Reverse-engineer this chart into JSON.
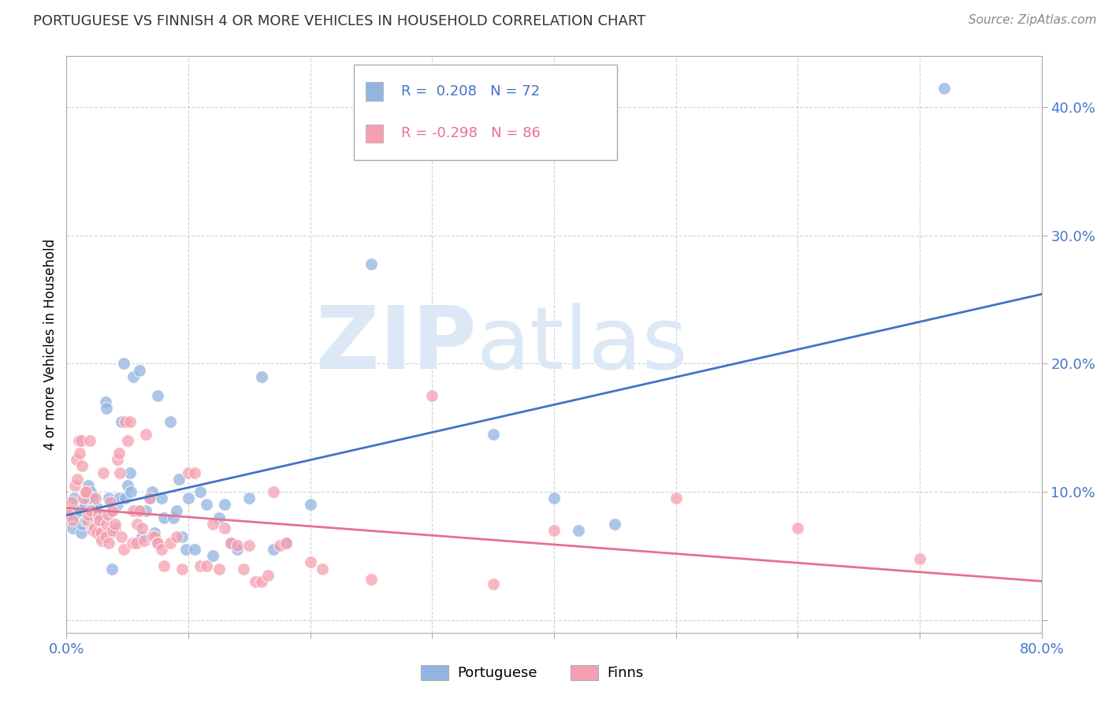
{
  "title": "PORTUGUESE VS FINNISH 4 OR MORE VEHICLES IN HOUSEHOLD CORRELATION CHART",
  "source": "Source: ZipAtlas.com",
  "ylabel": "4 or more Vehicles in Household",
  "legend_blue_r": "0.208",
  "legend_blue_n": "72",
  "legend_pink_r": "-0.298",
  "legend_pink_n": "86",
  "blue_color": "#92b4e0",
  "pink_color": "#f5a0b0",
  "blue_line_color": "#4472c4",
  "pink_line_color": "#e87090",
  "watermark_zip": "ZIP",
  "watermark_atlas": "atlas",
  "watermark_color": "#dce8f5",
  "xlim": [
    0.0,
    0.8
  ],
  "ylim": [
    -0.01,
    0.44
  ],
  "xtick_values": [
    0.0,
    0.1,
    0.2,
    0.3,
    0.4,
    0.5,
    0.6,
    0.7,
    0.8
  ],
  "ytick_values": [
    0.0,
    0.1,
    0.2,
    0.3,
    0.4
  ],
  "blue_scatter": [
    [
      0.003,
      0.082
    ],
    [
      0.005,
      0.072
    ],
    [
      0.006,
      0.095
    ],
    [
      0.008,
      0.082
    ],
    [
      0.01,
      0.085
    ],
    [
      0.012,
      0.068
    ],
    [
      0.013,
      0.075
    ],
    [
      0.015,
      0.09
    ],
    [
      0.016,
      0.078
    ],
    [
      0.017,
      0.095
    ],
    [
      0.018,
      0.105
    ],
    [
      0.019,
      0.08
    ],
    [
      0.02,
      0.1
    ],
    [
      0.021,
      0.095
    ],
    [
      0.022,
      0.072
    ],
    [
      0.023,
      0.085
    ],
    [
      0.025,
      0.088
    ],
    [
      0.027,
      0.078
    ],
    [
      0.028,
      0.065
    ],
    [
      0.03,
      0.082
    ],
    [
      0.032,
      0.17
    ],
    [
      0.033,
      0.165
    ],
    [
      0.035,
      0.095
    ],
    [
      0.036,
      0.068
    ],
    [
      0.037,
      0.04
    ],
    [
      0.038,
      0.085
    ],
    [
      0.04,
      0.072
    ],
    [
      0.042,
      0.09
    ],
    [
      0.043,
      0.095
    ],
    [
      0.045,
      0.155
    ],
    [
      0.047,
      0.2
    ],
    [
      0.048,
      0.095
    ],
    [
      0.05,
      0.105
    ],
    [
      0.052,
      0.115
    ],
    [
      0.053,
      0.1
    ],
    [
      0.055,
      0.19
    ],
    [
      0.058,
      0.085
    ],
    [
      0.06,
      0.195
    ],
    [
      0.062,
      0.065
    ],
    [
      0.065,
      0.085
    ],
    [
      0.068,
      0.095
    ],
    [
      0.07,
      0.1
    ],
    [
      0.072,
      0.068
    ],
    [
      0.075,
      0.175
    ],
    [
      0.078,
      0.095
    ],
    [
      0.08,
      0.08
    ],
    [
      0.085,
      0.155
    ],
    [
      0.088,
      0.08
    ],
    [
      0.09,
      0.085
    ],
    [
      0.092,
      0.11
    ],
    [
      0.095,
      0.065
    ],
    [
      0.098,
      0.055
    ],
    [
      0.1,
      0.095
    ],
    [
      0.105,
      0.055
    ],
    [
      0.11,
      0.1
    ],
    [
      0.115,
      0.09
    ],
    [
      0.12,
      0.05
    ],
    [
      0.125,
      0.08
    ],
    [
      0.13,
      0.09
    ],
    [
      0.135,
      0.06
    ],
    [
      0.14,
      0.055
    ],
    [
      0.15,
      0.095
    ],
    [
      0.16,
      0.19
    ],
    [
      0.17,
      0.055
    ],
    [
      0.18,
      0.06
    ],
    [
      0.2,
      0.09
    ],
    [
      0.25,
      0.278
    ],
    [
      0.35,
      0.145
    ],
    [
      0.4,
      0.095
    ],
    [
      0.42,
      0.07
    ],
    [
      0.45,
      0.075
    ],
    [
      0.72,
      0.415
    ]
  ],
  "pink_scatter": [
    [
      0.002,
      0.082
    ],
    [
      0.004,
      0.092
    ],
    [
      0.005,
      0.078
    ],
    [
      0.007,
      0.105
    ],
    [
      0.008,
      0.125
    ],
    [
      0.009,
      0.11
    ],
    [
      0.01,
      0.14
    ],
    [
      0.011,
      0.13
    ],
    [
      0.012,
      0.14
    ],
    [
      0.013,
      0.12
    ],
    [
      0.014,
      0.095
    ],
    [
      0.015,
      0.1
    ],
    [
      0.016,
      0.1
    ],
    [
      0.017,
      0.078
    ],
    [
      0.018,
      0.082
    ],
    [
      0.019,
      0.14
    ],
    [
      0.02,
      0.085
    ],
    [
      0.021,
      0.072
    ],
    [
      0.022,
      0.07
    ],
    [
      0.023,
      0.072
    ],
    [
      0.024,
      0.095
    ],
    [
      0.025,
      0.068
    ],
    [
      0.026,
      0.082
    ],
    [
      0.027,
      0.078
    ],
    [
      0.028,
      0.068
    ],
    [
      0.029,
      0.062
    ],
    [
      0.03,
      0.115
    ],
    [
      0.032,
      0.065
    ],
    [
      0.033,
      0.075
    ],
    [
      0.034,
      0.082
    ],
    [
      0.035,
      0.06
    ],
    [
      0.036,
      0.092
    ],
    [
      0.037,
      0.085
    ],
    [
      0.038,
      0.07
    ],
    [
      0.04,
      0.075
    ],
    [
      0.042,
      0.125
    ],
    [
      0.043,
      0.13
    ],
    [
      0.044,
      0.115
    ],
    [
      0.045,
      0.065
    ],
    [
      0.047,
      0.055
    ],
    [
      0.048,
      0.155
    ],
    [
      0.05,
      0.14
    ],
    [
      0.052,
      0.155
    ],
    [
      0.054,
      0.06
    ],
    [
      0.055,
      0.085
    ],
    [
      0.057,
      0.06
    ],
    [
      0.058,
      0.075
    ],
    [
      0.06,
      0.085
    ],
    [
      0.062,
      0.072
    ],
    [
      0.064,
      0.062
    ],
    [
      0.065,
      0.145
    ],
    [
      0.068,
      0.095
    ],
    [
      0.07,
      0.065
    ],
    [
      0.072,
      0.065
    ],
    [
      0.074,
      0.06
    ],
    [
      0.075,
      0.06
    ],
    [
      0.078,
      0.055
    ],
    [
      0.08,
      0.042
    ],
    [
      0.085,
      0.06
    ],
    [
      0.09,
      0.065
    ],
    [
      0.095,
      0.04
    ],
    [
      0.1,
      0.115
    ],
    [
      0.105,
      0.115
    ],
    [
      0.11,
      0.042
    ],
    [
      0.115,
      0.042
    ],
    [
      0.12,
      0.075
    ],
    [
      0.125,
      0.04
    ],
    [
      0.13,
      0.072
    ],
    [
      0.135,
      0.06
    ],
    [
      0.14,
      0.058
    ],
    [
      0.145,
      0.04
    ],
    [
      0.15,
      0.058
    ],
    [
      0.155,
      0.03
    ],
    [
      0.16,
      0.03
    ],
    [
      0.165,
      0.035
    ],
    [
      0.17,
      0.1
    ],
    [
      0.175,
      0.058
    ],
    [
      0.18,
      0.06
    ],
    [
      0.2,
      0.045
    ],
    [
      0.21,
      0.04
    ],
    [
      0.25,
      0.032
    ],
    [
      0.3,
      0.175
    ],
    [
      0.35,
      0.028
    ],
    [
      0.4,
      0.07
    ],
    [
      0.5,
      0.095
    ],
    [
      0.6,
      0.072
    ],
    [
      0.7,
      0.048
    ]
  ],
  "background_color": "#ffffff",
  "grid_color": "#cccccc",
  "title_color": "#333333",
  "tick_label_color": "#4477cc"
}
